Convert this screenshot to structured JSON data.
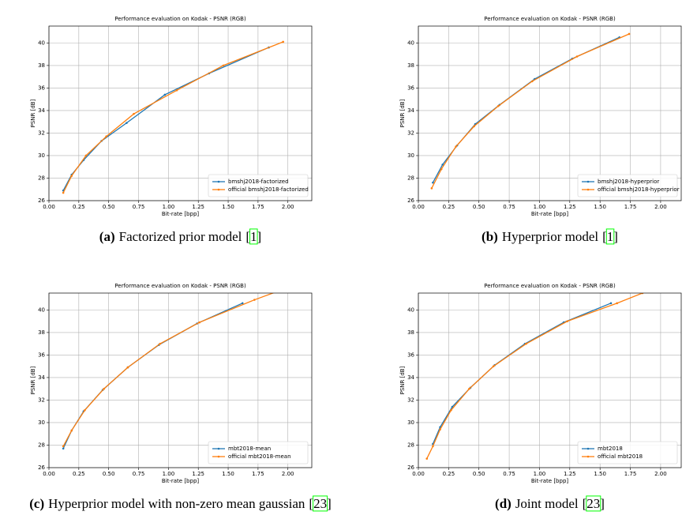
{
  "chart_data": [
    {
      "type": "line",
      "title": "Performance evaluation on Kodak - PSNR (RGB)",
      "xlabel": "Bit-rate [bpp]",
      "ylabel": "PSNR [dB]",
      "caption_label": "(a)",
      "caption_text": "Factorized prior model",
      "caption_ref": "[1]",
      "xlim": [
        0,
        2.2
      ],
      "ylim": [
        26,
        41.5
      ],
      "xticks": [
        {
          "value": 0,
          "label": "0.00"
        },
        {
          "value": 0.25,
          "label": "0.25"
        },
        {
          "value": 0.5,
          "label": "0.50"
        },
        {
          "value": 0.75,
          "label": "0.75"
        },
        {
          "value": 1,
          "label": "1.00"
        },
        {
          "value": 1.25,
          "label": "1.25"
        },
        {
          "value": 1.5,
          "label": "1.50"
        },
        {
          "value": 1.75,
          "label": "1.75"
        },
        {
          "value": 2,
          "label": "2.00"
        }
      ],
      "yticks": [
        26,
        28,
        30,
        32,
        34,
        36,
        38,
        40
      ],
      "grid": true,
      "legend": "lower right",
      "series": [
        {
          "name": "bmshj2018-factorized",
          "color": "#1f77b4",
          "x": [
            0.12,
            0.19,
            0.29,
            0.44,
            0.65,
            0.97,
            1.34,
            1.84
          ],
          "values": [
            26.9,
            28.3,
            29.6,
            31.3,
            32.9,
            35.4,
            37.3,
            39.6
          ]
        },
        {
          "name": "official bmshj2018-factorized",
          "color": "#ff7f0e",
          "x": [
            0.12,
            0.19,
            0.31,
            0.48,
            0.71,
            1.07,
            1.46,
            1.96
          ],
          "values": [
            26.7,
            28.2,
            30.0,
            31.7,
            33.7,
            35.8,
            38.0,
            40.1
          ]
        }
      ]
    },
    {
      "type": "line",
      "title": "Performance evaluation on Kodak - PSNR (RGB)",
      "xlabel": "Bit-rate [bpp]",
      "ylabel": "PSNR [dB]",
      "caption_label": "(b)",
      "caption_text": "Hyperprior model",
      "caption_ref": "[1]",
      "xlim": [
        0,
        2.17
      ],
      "ylim": [
        26,
        41.5
      ],
      "xticks": [
        {
          "value": 0,
          "label": "0.00"
        },
        {
          "value": 0.25,
          "label": "0.25"
        },
        {
          "value": 0.5,
          "label": "0.50"
        },
        {
          "value": 0.75,
          "label": "0.75"
        },
        {
          "value": 1,
          "label": "1.00"
        },
        {
          "value": 1.25,
          "label": "1.25"
        },
        {
          "value": 1.5,
          "label": "1.50"
        },
        {
          "value": 1.75,
          "label": "1.75"
        },
        {
          "value": 2,
          "label": "2.00"
        }
      ],
      "yticks": [
        26,
        28,
        30,
        32,
        34,
        36,
        38,
        40
      ],
      "grid": true,
      "legend": "lower right",
      "series": [
        {
          "name": "bmshj2018-hyperprior",
          "color": "#1f77b4",
          "x": [
            0.12,
            0.2,
            0.32,
            0.47,
            0.67,
            0.96,
            1.27,
            1.66
          ],
          "values": [
            27.6,
            29.2,
            30.9,
            32.8,
            34.5,
            36.8,
            38.6,
            40.5
          ]
        },
        {
          "name": "official bmshj2018-hyperprior",
          "color": "#ff7f0e",
          "x": [
            0.11,
            0.19,
            0.31,
            0.46,
            0.66,
            0.94,
            1.31,
            1.74
          ],
          "values": [
            27.1,
            28.8,
            30.8,
            32.6,
            34.4,
            36.6,
            38.8,
            40.8
          ]
        }
      ]
    },
    {
      "type": "line",
      "title": "Performance evaluation on Kodak - PSNR (RGB)",
      "xlabel": "Bit-rate [bpp]",
      "ylabel": "PSNR [dB]",
      "caption_label": "(c)",
      "caption_text": "Hyperprior model with non-zero mean gaussian",
      "caption_ref": "[23]",
      "xlim": [
        0,
        2.2
      ],
      "ylim": [
        26,
        41.5
      ],
      "xticks": [
        {
          "value": 0,
          "label": "0.00"
        },
        {
          "value": 0.25,
          "label": "0.25"
        },
        {
          "value": 0.5,
          "label": "0.50"
        },
        {
          "value": 0.75,
          "label": "0.75"
        },
        {
          "value": 1,
          "label": "1.00"
        },
        {
          "value": 1.25,
          "label": "1.25"
        },
        {
          "value": 1.5,
          "label": "1.50"
        },
        {
          "value": 1.75,
          "label": "1.75"
        },
        {
          "value": 2,
          "label": "2.00"
        }
      ],
      "yticks": [
        26,
        28,
        30,
        32,
        34,
        36,
        38,
        40
      ],
      "grid": true,
      "legend": "lower right",
      "series": [
        {
          "name": "mbt2018-mean",
          "color": "#1f77b4",
          "x": [
            0.12,
            0.19,
            0.29,
            0.45,
            0.66,
            0.92,
            1.24,
            1.62
          ],
          "values": [
            27.7,
            29.3,
            31.0,
            32.9,
            34.9,
            36.9,
            38.8,
            40.6
          ]
        },
        {
          "name": "official mbt2018-mean",
          "color": "#ff7f0e",
          "x": [
            0.12,
            0.19,
            0.3,
            0.46,
            0.66,
            0.93,
            1.26,
            1.72,
            1.9
          ],
          "values": [
            27.9,
            29.3,
            31.1,
            33.0,
            34.9,
            37.0,
            38.9,
            40.9,
            41.6
          ]
        }
      ]
    },
    {
      "type": "line",
      "title": "Performance evaluation on Kodak - PSNR (RGB)",
      "xlabel": "Bit-rate [bpp]",
      "ylabel": "PSNR [dB]",
      "caption_label": "(d)",
      "caption_text": "Joint model",
      "caption_ref": "[23]",
      "xlim": [
        0,
        2.17
      ],
      "ylim": [
        26,
        41.5
      ],
      "xticks": [
        {
          "value": 0,
          "label": "0.00"
        },
        {
          "value": 0.25,
          "label": "0.25"
        },
        {
          "value": 0.5,
          "label": "0.50"
        },
        {
          "value": 0.75,
          "label": "0.75"
        },
        {
          "value": 1,
          "label": "1.00"
        },
        {
          "value": 1.25,
          "label": "1.25"
        },
        {
          "value": 1.5,
          "label": "1.50"
        },
        {
          "value": 1.75,
          "label": "1.75"
        },
        {
          "value": 2,
          "label": "2.00"
        }
      ],
      "yticks": [
        26,
        28,
        30,
        32,
        34,
        36,
        38,
        40
      ],
      "grid": true,
      "legend": "lower right",
      "series": [
        {
          "name": "mbt2018",
          "color": "#1f77b4",
          "x": [
            0.12,
            0.18,
            0.28,
            0.43,
            0.63,
            0.88,
            1.2,
            1.59
          ],
          "values": [
            28.1,
            29.6,
            31.4,
            33.1,
            35.1,
            37.0,
            38.9,
            40.6
          ]
        },
        {
          "name": "official mbt2018",
          "color": "#ff7f0e",
          "x": [
            0.07,
            0.12,
            0.18,
            0.27,
            0.42,
            0.62,
            0.89,
            1.23,
            1.64,
            1.85
          ],
          "values": [
            26.8,
            27.9,
            29.4,
            31.1,
            33.0,
            35.0,
            37.0,
            39.0,
            40.6,
            41.5
          ]
        }
      ]
    }
  ]
}
